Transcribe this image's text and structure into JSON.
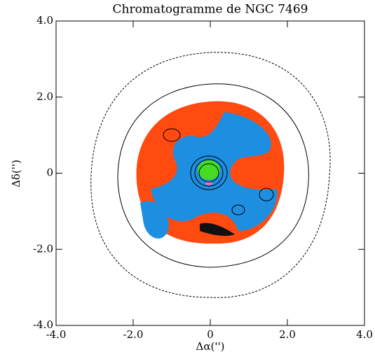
{
  "chart_data": {
    "type": "image",
    "title": "Chromatogramme de NGC 7469",
    "x_label": "Δα('')",
    "y_label": "Δδ('')",
    "xlim": [
      -4,
      4
    ],
    "ylim": [
      -4,
      4
    ],
    "xticks": [
      {
        "value": -4,
        "label": "-4.0"
      },
      {
        "value": -2,
        "label": "-2.0"
      },
      0,
      {
        "value": 2,
        "label": "2.0"
      },
      {
        "value": 4,
        "label": "4.0"
      }
    ],
    "yticks": [
      {
        "value": -4,
        "label": "-4.0"
      },
      {
        "value": -2,
        "label": "-2.0"
      },
      0,
      {
        "value": 2,
        "label": "2.0"
      },
      {
        "value": 4,
        "label": "4.0"
      }
    ]
  }
}
